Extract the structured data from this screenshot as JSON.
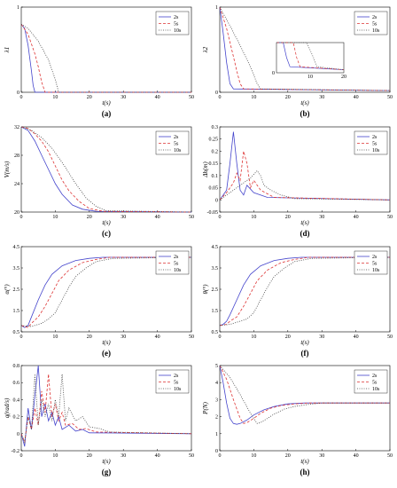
{
  "legend_labels": [
    "2s",
    "5s",
    "10s"
  ],
  "series_colors": [
    "#4444cc",
    "#dd3333",
    "#444444"
  ],
  "chart_data": [
    {
      "type": "line",
      "panel_label": "(a)",
      "xlabel": "t(s)",
      "ylabel": "λ1",
      "xlim": [
        0,
        50
      ],
      "ylim": [
        0,
        1
      ],
      "xticks": [
        "0",
        "10",
        "20",
        "30",
        "40",
        "50"
      ],
      "yticks": [
        "0",
        "1"
      ],
      "series": [
        {
          "name": "2s",
          "x": [
            0,
            1,
            2,
            3,
            3.5,
            4,
            50
          ],
          "y": [
            0.8,
            0.75,
            0.55,
            0.25,
            0.08,
            0,
            0
          ]
        },
        {
          "name": "5s",
          "x": [
            0,
            2,
            4,
            5,
            6,
            7,
            50
          ],
          "y": [
            0.8,
            0.68,
            0.45,
            0.3,
            0.12,
            0,
            0
          ]
        },
        {
          "name": "10s",
          "x": [
            0,
            2,
            5,
            8,
            10,
            11,
            50
          ],
          "y": [
            0.8,
            0.75,
            0.6,
            0.38,
            0.15,
            0,
            0
          ]
        }
      ]
    },
    {
      "type": "line",
      "panel_label": "(b)",
      "xlabel": "t(s)",
      "ylabel": "λ2",
      "xlim": [
        0,
        50
      ],
      "ylim": [
        0,
        1
      ],
      "xticks": [
        "0",
        "10",
        "20",
        "30",
        "40",
        "50"
      ],
      "yticks": [
        "0",
        "1"
      ],
      "series": [
        {
          "name": "2s",
          "x": [
            0,
            1,
            2,
            3,
            4,
            50
          ],
          "y": [
            1,
            0.7,
            0.35,
            0.1,
            0.04,
            0.02
          ]
        },
        {
          "name": "5s",
          "x": [
            0,
            2,
            4,
            5,
            6,
            7,
            50
          ],
          "y": [
            1,
            0.75,
            0.42,
            0.25,
            0.1,
            0.04,
            0.02
          ]
        },
        {
          "name": "10s",
          "x": [
            0,
            3,
            6,
            9,
            11,
            12,
            50
          ],
          "y": [
            1,
            0.78,
            0.55,
            0.3,
            0.1,
            0.04,
            0.02
          ]
        }
      ],
      "inset": {
        "xlim": [
          0,
          20
        ],
        "ylim": [
          0,
          0.2
        ],
        "xticks": [
          "10",
          "20"
        ],
        "yticks": [
          "0"
        ]
      }
    },
    {
      "type": "line",
      "panel_label": "(c)",
      "xlabel": "t(s)",
      "ylabel": "V(m/s)",
      "xlim": [
        0,
        50
      ],
      "ylim": [
        20,
        32
      ],
      "xticks": [
        "0",
        "10",
        "20",
        "30",
        "40",
        "50"
      ],
      "yticks": [
        "20",
        "24",
        "28",
        "32"
      ],
      "series": [
        {
          "name": "2s",
          "x": [
            0,
            2,
            4,
            6,
            8,
            10,
            12,
            15,
            18,
            22,
            50
          ],
          "y": [
            32,
            31.5,
            30,
            28,
            26,
            24,
            22.5,
            21,
            20.4,
            20.1,
            20
          ]
        },
        {
          "name": "5s",
          "x": [
            0,
            2,
            4,
            6,
            8,
            10,
            12,
            14,
            17,
            20,
            24,
            50
          ],
          "y": [
            32,
            31.8,
            31,
            30,
            28.5,
            26.5,
            24.5,
            23,
            21.5,
            20.5,
            20.1,
            20
          ]
        },
        {
          "name": "10s",
          "x": [
            0,
            3,
            6,
            9,
            12,
            14,
            16,
            19,
            22,
            25,
            50
          ],
          "y": [
            32,
            31.5,
            30.5,
            29,
            27,
            25.5,
            24,
            22,
            20.8,
            20.2,
            20
          ]
        }
      ]
    },
    {
      "type": "line",
      "panel_label": "(d)",
      "xlabel": "t(s)",
      "ylabel": "Δh(m)",
      "xlim": [
        0,
        50
      ],
      "ylim": [
        -0.05,
        0.3
      ],
      "xticks": [
        "0",
        "10",
        "20",
        "30",
        "40",
        "50"
      ],
      "yticks": [
        "-0.05",
        "0",
        "0.05",
        "0.1",
        "0.15",
        "0.2",
        "0.25",
        "0.3"
      ],
      "series": [
        {
          "name": "2s",
          "x": [
            0,
            2,
            3,
            4,
            5,
            6,
            7,
            8,
            10,
            14,
            50
          ],
          "y": [
            0,
            0.04,
            0.15,
            0.28,
            0.15,
            0.04,
            0.02,
            0.06,
            0.03,
            0.01,
            0
          ]
        },
        {
          "name": "5s",
          "x": [
            0,
            2,
            4,
            5,
            6,
            7,
            8,
            9,
            10,
            12,
            16,
            50
          ],
          "y": [
            0,
            0.03,
            0.07,
            0.11,
            0.08,
            0.2,
            0.15,
            0.05,
            0.08,
            0.04,
            0.01,
            0
          ]
        },
        {
          "name": "10s",
          "x": [
            0,
            3,
            5,
            7,
            9,
            11,
            12,
            13,
            15,
            18,
            22,
            50
          ],
          "y": [
            0,
            0.03,
            0.05,
            0.07,
            0.09,
            0.12,
            0.1,
            0.06,
            0.04,
            0.02,
            0.005,
            0
          ]
        }
      ]
    },
    {
      "type": "line",
      "panel_label": "(e)",
      "xlabel": "t(s)",
      "ylabel": "α(°)",
      "xlim": [
        0,
        50
      ],
      "ylim": [
        0.5,
        4.5
      ],
      "xticks": [
        "0",
        "10",
        "20",
        "30",
        "40",
        "50"
      ],
      "yticks": [
        "0.5",
        "1.5",
        "2.5",
        "3.5",
        "4.5"
      ],
      "series": [
        {
          "name": "2s",
          "x": [
            0,
            1,
            2,
            3,
            5,
            7,
            9,
            12,
            16,
            20,
            24,
            50
          ],
          "y": [
            0.8,
            0.7,
            0.8,
            1.2,
            2,
            2.7,
            3.2,
            3.6,
            3.85,
            3.95,
            4,
            4
          ]
        },
        {
          "name": "5s",
          "x": [
            0,
            2,
            3,
            5,
            7,
            9,
            11,
            14,
            18,
            22,
            26,
            50
          ],
          "y": [
            0.8,
            0.7,
            0.9,
            1.2,
            1.7,
            2.3,
            2.9,
            3.4,
            3.75,
            3.9,
            4,
            4
          ]
        },
        {
          "name": "10s",
          "x": [
            0,
            3,
            6,
            8,
            10,
            12,
            14,
            16,
            19,
            22,
            27,
            50
          ],
          "y": [
            0.8,
            0.75,
            0.9,
            1.1,
            1.4,
            2,
            2.6,
            3.1,
            3.5,
            3.8,
            3.95,
            4
          ]
        }
      ]
    },
    {
      "type": "line",
      "panel_label": "(f)",
      "xlabel": "t(s)",
      "ylabel": "θ(°)",
      "xlim": [
        0,
        50
      ],
      "ylim": [
        0.5,
        4.5
      ],
      "xticks": [
        "0",
        "10",
        "20",
        "30",
        "40",
        "50"
      ],
      "yticks": [
        "0.5",
        "1.5",
        "2.5",
        "3.5",
        "4.5"
      ],
      "series": [
        {
          "name": "2s",
          "x": [
            0,
            1,
            2,
            3,
            5,
            7,
            9,
            12,
            16,
            20,
            24,
            50
          ],
          "y": [
            0.8,
            0.85,
            1.0,
            1.3,
            2,
            2.7,
            3.2,
            3.6,
            3.85,
            3.95,
            4,
            4
          ]
        },
        {
          "name": "5s",
          "x": [
            0,
            2,
            3,
            5,
            7,
            9,
            11,
            14,
            18,
            22,
            26,
            50
          ],
          "y": [
            0.8,
            0.85,
            1.0,
            1.2,
            1.7,
            2.3,
            2.9,
            3.4,
            3.75,
            3.9,
            4,
            4
          ]
        },
        {
          "name": "10s",
          "x": [
            0,
            3,
            6,
            8,
            10,
            12,
            14,
            16,
            19,
            22,
            27,
            50
          ],
          "y": [
            0.8,
            0.85,
            1.0,
            1.1,
            1.4,
            2,
            2.6,
            3.1,
            3.5,
            3.8,
            3.95,
            4
          ]
        }
      ]
    },
    {
      "type": "line",
      "panel_label": "(g)",
      "xlabel": "t(s)",
      "ylabel": "q(rad/s)",
      "xlim": [
        0,
        50
      ],
      "ylim": [
        -0.2,
        0.8
      ],
      "xticks": [
        "0",
        "10",
        "20",
        "30",
        "40",
        "50"
      ],
      "yticks": [
        "-0.2",
        "0",
        "0.2",
        "0.4",
        "0.6",
        "0.8"
      ],
      "series": [
        {
          "name": "2s",
          "x": [
            0,
            1,
            2,
            3,
            4,
            5,
            6,
            7,
            8,
            9,
            10,
            11,
            12,
            14,
            16,
            18,
            20,
            50
          ],
          "y": [
            0,
            -0.15,
            0.3,
            0.05,
            0.45,
            0.8,
            0.2,
            0.35,
            0.15,
            0.25,
            0.1,
            0.2,
            0.05,
            0.1,
            0.03,
            0.05,
            0.01,
            0
          ]
        },
        {
          "name": "5s",
          "x": [
            0,
            1,
            2,
            3,
            4,
            5,
            6,
            7,
            8,
            9,
            10,
            11,
            12,
            13,
            15,
            17,
            19,
            22,
            50
          ],
          "y": [
            0,
            -0.1,
            0.2,
            0.05,
            0.3,
            0.1,
            0.5,
            0.25,
            0.7,
            0.2,
            0.35,
            0.15,
            0.25,
            0.1,
            0.12,
            0.05,
            0.06,
            0.02,
            0
          ]
        },
        {
          "name": "10s",
          "x": [
            0,
            1,
            2,
            3,
            4,
            5,
            6,
            7,
            8,
            9,
            10,
            11,
            12,
            13,
            14,
            16,
            18,
            20,
            23,
            26,
            50
          ],
          "y": [
            0,
            -0.1,
            0.2,
            0.05,
            0.7,
            0.1,
            0.4,
            0.2,
            0.35,
            0.15,
            0.4,
            0.2,
            0.7,
            0.15,
            0.3,
            0.15,
            0.2,
            0.08,
            0.06,
            0.02,
            0
          ]
        }
      ]
    },
    {
      "type": "line",
      "panel_label": "(h)",
      "xlabel": "t(s)",
      "ylabel": "P(N)",
      "xlim": [
        0,
        50
      ],
      "ylim": [
        0,
        5
      ],
      "xticks": [
        "0",
        "10",
        "20",
        "30",
        "40",
        "50"
      ],
      "yticks": [
        "0",
        "1",
        "2",
        "3",
        "4",
        "5"
      ],
      "series": [
        {
          "name": "2s",
          "x": [
            0,
            1,
            2,
            3,
            4,
            5,
            6,
            8,
            10,
            13,
            16,
            20,
            25,
            50
          ],
          "y": [
            5,
            4,
            2.8,
            1.9,
            1.6,
            1.55,
            1.6,
            1.8,
            2.1,
            2.4,
            2.6,
            2.75,
            2.8,
            2.8
          ]
        },
        {
          "name": "5s",
          "x": [
            0,
            2,
            4,
            6,
            7,
            8,
            10,
            12,
            15,
            18,
            22,
            26,
            50
          ],
          "y": [
            5,
            4.2,
            3,
            1.9,
            1.6,
            1.65,
            1.9,
            2.2,
            2.5,
            2.65,
            2.75,
            2.8,
            2.8
          ]
        },
        {
          "name": "10s",
          "x": [
            0,
            3,
            6,
            9,
            11,
            12,
            14,
            16,
            19,
            22,
            26,
            30,
            50
          ],
          "y": [
            5,
            4.3,
            3.3,
            2.2,
            1.6,
            1.65,
            1.9,
            2.15,
            2.45,
            2.6,
            2.72,
            2.8,
            2.8
          ]
        }
      ]
    }
  ]
}
